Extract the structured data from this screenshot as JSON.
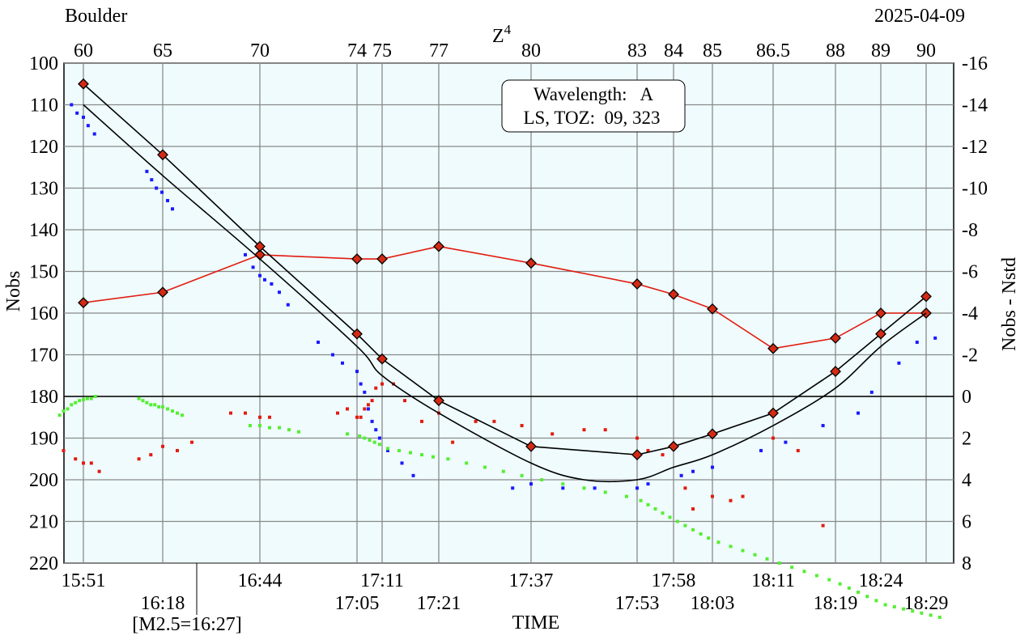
{
  "header": {
    "station": "Boulder",
    "date": "2025-04-09",
    "top_axis_title": "Z",
    "top_axis_superscript": "4"
  },
  "legend_box": {
    "line1": "Wavelength:   A",
    "line2": "LS, TOZ:  09, 323"
  },
  "colors": {
    "plot_background": "#effbfd",
    "grid": "#8a8a8a",
    "red_series": "#e31b0f",
    "black_series": "#000000",
    "blue_points": "#1a1aff",
    "green_points": "#55ee33",
    "red_points": "#e31b0f"
  },
  "chart_data": {
    "type": "line",
    "xlabel": "TIME",
    "ylabel_left": "Nobs",
    "ylabel_right": "Nobs - Nstd",
    "ylim_left": [
      100,
      220
    ],
    "ylim_left_inverted": true,
    "ylim_right": [
      -16,
      8
    ],
    "ylim_right_inverted": true,
    "left_ticks": [
      100,
      110,
      120,
      130,
      140,
      150,
      160,
      170,
      180,
      190,
      200,
      210,
      220
    ],
    "right_ticks": [
      -16,
      -14,
      -12,
      -10,
      -8,
      -6,
      -4,
      -2,
      0,
      2,
      4,
      6,
      8
    ],
    "grid": true,
    "time_ticks": [
      {
        "label": "15:51",
        "x": 0,
        "row": 1
      },
      {
        "label": "16:18",
        "x": 1,
        "row": 2
      },
      {
        "label": "16:44",
        "x": 2,
        "row": 1
      },
      {
        "label": "17:05",
        "x": 3,
        "row": 2
      },
      {
        "label": "17:11",
        "x": 4,
        "row": 1
      },
      {
        "label": "17:21",
        "x": 5,
        "row": 2
      },
      {
        "label": "17:37",
        "x": 6,
        "row": 1
      },
      {
        "label": "17:53",
        "x": 7,
        "row": 2
      },
      {
        "label": "17:58",
        "x": 8,
        "row": 1
      },
      {
        "label": "18:03",
        "x": 9,
        "row": 2
      },
      {
        "label": "18:11",
        "x": 10,
        "row": 1
      },
      {
        "label": "18:19",
        "x": 11,
        "row": 2
      },
      {
        "label": "18:24",
        "x": 12,
        "row": 1
      },
      {
        "label": "18:29",
        "x": 13,
        "row": 2
      }
    ],
    "top_ticks": [
      "60",
      "65",
      "70",
      "74",
      "75",
      "77",
      "80",
      "83",
      "84",
      "85",
      "86.5",
      "88",
      "89",
      "90"
    ],
    "marker_note": {
      "label": "[M2.5=16:27]",
      "time": "16:27"
    },
    "series": [
      {
        "axis": "right",
        "color": "red",
        "marker": "diamond",
        "values": [
          -4.5,
          -5.0,
          -6.8,
          -6.6,
          -6.6,
          -7.2,
          -6.4,
          -5.4,
          -4.9,
          -4.2,
          -2.3,
          -2.8,
          -4.0,
          -4.0
        ]
      },
      {
        "axis": "left",
        "color": "black",
        "marker": "diamond",
        "values": [
          105,
          122,
          144,
          165,
          171,
          181,
          192,
          194,
          192,
          189,
          184,
          174,
          165,
          156
        ]
      },
      {
        "axis": "left",
        "color": "black",
        "marker": "none",
        "x": [
          0,
          1,
          2,
          3,
          4,
          5,
          6,
          6.5,
          7,
          8,
          9,
          10,
          11,
          12,
          13
        ],
        "values": [
          110,
          127,
          147,
          168,
          175,
          184,
          196,
          200,
          200,
          197,
          194,
          187,
          178,
          168,
          160
        ]
      }
    ],
    "scatter": {
      "blue": [
        [
          -0.15,
          110
        ],
        [
          -0.08,
          112
        ],
        [
          0,
          113
        ],
        [
          0.06,
          115
        ],
        [
          0.14,
          117
        ],
        [
          0.8,
          126
        ],
        [
          0.86,
          128
        ],
        [
          0.92,
          130
        ],
        [
          0.99,
          131
        ],
        [
          1.05,
          133
        ],
        [
          1.1,
          135
        ],
        [
          1.85,
          146
        ],
        [
          1.93,
          149
        ],
        [
          2.0,
          151
        ],
        [
          2.05,
          152
        ],
        [
          2.12,
          153
        ],
        [
          2.2,
          155
        ],
        [
          2.29,
          158
        ],
        [
          2.6,
          167
        ],
        [
          2.75,
          170
        ],
        [
          2.85,
          172
        ],
        [
          3.0,
          174
        ],
        [
          3.15,
          177
        ],
        [
          3.3,
          179
        ],
        [
          3.45,
          183
        ],
        [
          3.6,
          186
        ],
        [
          3.75,
          188
        ],
        [
          3.9,
          190
        ],
        [
          4.1,
          193
        ],
        [
          4.35,
          196
        ],
        [
          4.55,
          199
        ],
        [
          5.8,
          202
        ],
        [
          6.0,
          201
        ],
        [
          6.3,
          202
        ],
        [
          6.6,
          202
        ],
        [
          7.0,
          202
        ],
        [
          7.3,
          201
        ],
        [
          8.2,
          199
        ],
        [
          8.5,
          198
        ],
        [
          9.0,
          197
        ],
        [
          9.8,
          193
        ],
        [
          10.2,
          191
        ],
        [
          10.8,
          187
        ],
        [
          11.5,
          184
        ],
        [
          11.8,
          179
        ],
        [
          12.4,
          172
        ],
        [
          12.8,
          167
        ],
        [
          13.2,
          166
        ]
      ],
      "green": [
        [
          -0.3,
          0.9
        ],
        [
          -0.25,
          0.7
        ],
        [
          -0.2,
          0.6
        ],
        [
          -0.15,
          0.4
        ],
        [
          -0.1,
          0.3
        ],
        [
          -0.05,
          0.2
        ],
        [
          0.0,
          0.15
        ],
        [
          0.05,
          0.1
        ],
        [
          0.1,
          0.1
        ],
        [
          0.15,
          0.0
        ],
        [
          0.7,
          0.1
        ],
        [
          0.75,
          0.2
        ],
        [
          0.8,
          0.3
        ],
        [
          0.85,
          0.4
        ],
        [
          0.9,
          0.4
        ],
        [
          0.95,
          0.5
        ],
        [
          1.0,
          0.5
        ],
        [
          1.05,
          0.6
        ],
        [
          1.1,
          0.7
        ],
        [
          1.15,
          0.8
        ],
        [
          1.2,
          0.9
        ],
        [
          1.9,
          1.4
        ],
        [
          2.0,
          1.4
        ],
        [
          2.1,
          1.5
        ],
        [
          2.2,
          1.5
        ],
        [
          2.3,
          1.6
        ],
        [
          2.4,
          1.7
        ],
        [
          2.9,
          1.8
        ],
        [
          3.1,
          1.9
        ],
        [
          3.3,
          2.0
        ],
        [
          3.5,
          2.1
        ],
        [
          3.7,
          2.2
        ],
        [
          3.9,
          2.3
        ],
        [
          4.1,
          2.5
        ],
        [
          4.3,
          2.6
        ],
        [
          4.5,
          2.7
        ],
        [
          4.7,
          2.8
        ],
        [
          4.9,
          2.9
        ],
        [
          5.1,
          3.0
        ],
        [
          5.3,
          3.2
        ],
        [
          5.5,
          3.4
        ],
        [
          5.7,
          3.6
        ],
        [
          5.9,
          3.8
        ],
        [
          6.1,
          4.0
        ],
        [
          6.3,
          4.2
        ],
        [
          6.5,
          4.4
        ],
        [
          6.7,
          4.6
        ],
        [
          6.9,
          4.8
        ],
        [
          7.1,
          5.0
        ],
        [
          7.3,
          5.2
        ],
        [
          7.5,
          5.4
        ],
        [
          7.7,
          5.6
        ],
        [
          7.9,
          5.8
        ],
        [
          8.1,
          6.0
        ],
        [
          8.3,
          6.2
        ],
        [
          8.5,
          6.4
        ],
        [
          8.7,
          6.6
        ],
        [
          8.9,
          6.8
        ],
        [
          9.1,
          7.0
        ],
        [
          9.3,
          7.2
        ],
        [
          9.5,
          7.4
        ],
        [
          9.7,
          7.6
        ],
        [
          9.9,
          7.8
        ],
        [
          10.1,
          8.0
        ],
        [
          10.3,
          8.2
        ],
        [
          10.5,
          8.4
        ],
        [
          10.7,
          8.6
        ],
        [
          10.9,
          8.8
        ],
        [
          11.1,
          9.0
        ],
        [
          11.3,
          9.2
        ],
        [
          11.5,
          9.4
        ],
        [
          11.7,
          9.6
        ],
        [
          11.9,
          9.8
        ],
        [
          12.1,
          10.0
        ],
        [
          12.3,
          10.1
        ],
        [
          12.5,
          10.2
        ],
        [
          12.7,
          10.3
        ],
        [
          12.9,
          10.4
        ],
        [
          13.1,
          10.5
        ],
        [
          13.3,
          10.6
        ]
      ],
      "red": [
        [
          -0.25,
          193
        ],
        [
          -0.1,
          195
        ],
        [
          0.0,
          196
        ],
        [
          0.1,
          196
        ],
        [
          0.2,
          198
        ],
        [
          0.7,
          195
        ],
        [
          0.85,
          194
        ],
        [
          1.0,
          192
        ],
        [
          1.15,
          193
        ],
        [
          1.3,
          191
        ],
        [
          1.7,
          184
        ],
        [
          1.85,
          184
        ],
        [
          2.0,
          185
        ],
        [
          2.1,
          185
        ],
        [
          2.8,
          184
        ],
        [
          2.9,
          183
        ],
        [
          3.0,
          185
        ],
        [
          3.15,
          185
        ],
        [
          3.3,
          183
        ],
        [
          3.45,
          182
        ],
        [
          3.6,
          181
        ],
        [
          3.75,
          178
        ],
        [
          4.0,
          177
        ],
        [
          4.2,
          177
        ],
        [
          4.4,
          181
        ],
        [
          4.7,
          186
        ],
        [
          5.0,
          184
        ],
        [
          5.15,
          191
        ],
        [
          5.4,
          186
        ],
        [
          5.6,
          186
        ],
        [
          5.9,
          187
        ],
        [
          6.2,
          189
        ],
        [
          6.5,
          188
        ],
        [
          6.7,
          188
        ],
        [
          7.0,
          190
        ],
        [
          7.3,
          193
        ],
        [
          7.7,
          194
        ],
        [
          8.3,
          202
        ],
        [
          8.5,
          207
        ],
        [
          9.0,
          204
        ],
        [
          9.3,
          205
        ],
        [
          9.5,
          204
        ],
        [
          10.0,
          190
        ],
        [
          10.4,
          193
        ],
        [
          10.8,
          211
        ]
      ]
    }
  }
}
